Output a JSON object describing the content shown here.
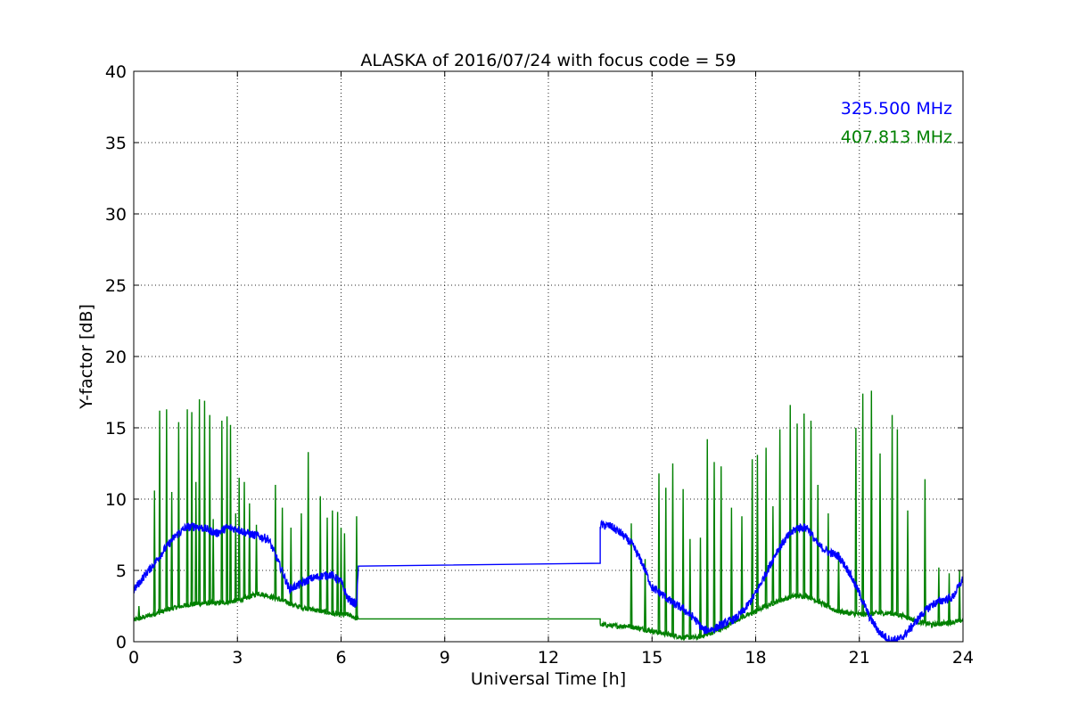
{
  "chart_data": {
    "type": "line",
    "title": "ALASKA of 2016/07/24 with focus code = 59",
    "xlabel": "Universal Time [h]",
    "ylabel": "Y-factor [dB]",
    "xlim": [
      0,
      24
    ],
    "ylim": [
      0,
      40
    ],
    "xticks": [
      0,
      3,
      6,
      9,
      12,
      15,
      18,
      21,
      24
    ],
    "yticks": [
      0,
      5,
      10,
      15,
      20,
      25,
      30,
      35,
      40
    ],
    "grid": true,
    "legend_position": "top-right",
    "series": [
      {
        "name": "325.500 MHz",
        "color": "#0000ff",
        "x": [
          0,
          0.3,
          0.6,
          0.9,
          1.2,
          1.5,
          1.8,
          2.1,
          2.4,
          2.7,
          3.0,
          3.3,
          3.6,
          3.9,
          4.2,
          4.5,
          4.8,
          5.1,
          5.4,
          5.7,
          6.0,
          6.2,
          6.45,
          6.5,
          13.5,
          13.5,
          13.8,
          14.1,
          14.4,
          14.7,
          15.0,
          15.3,
          15.6,
          15.9,
          16.2,
          16.5,
          16.8,
          17.1,
          17.4,
          17.7,
          18.0,
          18.3,
          18.6,
          18.9,
          19.2,
          19.5,
          19.8,
          20.1,
          20.4,
          20.7,
          21.0,
          21.3,
          21.6,
          21.9,
          22.2,
          22.5,
          22.8,
          23.1,
          23.4,
          23.7,
          24.0
        ],
        "values": [
          3.6,
          4.6,
          5.5,
          6.5,
          7.4,
          8.0,
          8.1,
          7.9,
          7.6,
          8.0,
          7.9,
          7.6,
          7.4,
          7.2,
          5.5,
          3.7,
          4.0,
          4.4,
          4.6,
          4.7,
          4.2,
          3.0,
          2.6,
          5.3,
          5.5,
          8.2,
          8.1,
          7.6,
          6.9,
          5.6,
          3.8,
          3.3,
          2.7,
          2.3,
          1.7,
          0.8,
          0.9,
          1.3,
          1.6,
          2.3,
          3.4,
          4.8,
          6.3,
          7.3,
          8.0,
          8.0,
          6.8,
          6.3,
          6.0,
          4.9,
          3.4,
          1.7,
          0.6,
          0.1,
          0.2,
          1.0,
          1.9,
          2.6,
          2.9,
          3.1,
          4.4
        ]
      },
      {
        "name": "407.813 MHz",
        "color": "#008000",
        "x": [
          0,
          0.4,
          0.8,
          1.2,
          1.6,
          2.0,
          2.4,
          2.8,
          3.2,
          3.6,
          3.9,
          4.3,
          4.7,
          5.1,
          5.5,
          5.9,
          6.2,
          6.5,
          6.5,
          13.5,
          13.5,
          13.9,
          14.3,
          14.7,
          15.1,
          15.5,
          15.9,
          16.3,
          16.7,
          17.1,
          17.5,
          17.9,
          18.3,
          18.7,
          19.1,
          19.5,
          19.9,
          20.3,
          20.7,
          21.1,
          21.5,
          21.9,
          22.3,
          22.7,
          23.1,
          23.5,
          24.0
        ],
        "values": [
          1.5,
          1.8,
          2.1,
          2.4,
          2.6,
          2.7,
          2.7,
          2.8,
          3.0,
          3.4,
          3.2,
          2.9,
          2.5,
          2.3,
          2.1,
          1.9,
          1.9,
          1.6,
          1.6,
          1.6,
          1.2,
          1.1,
          1.1,
          0.9,
          0.7,
          0.5,
          0.3,
          0.3,
          0.6,
          1.0,
          1.6,
          2.0,
          2.5,
          2.9,
          3.2,
          3.2,
          2.7,
          2.2,
          2.0,
          1.9,
          2.0,
          2.0,
          1.8,
          1.4,
          1.2,
          1.3,
          1.5
        ]
      }
    ],
    "spikes_407": [
      {
        "x": 0.15,
        "y": 2.5
      },
      {
        "x": 0.6,
        "y": 10.6
      },
      {
        "x": 0.75,
        "y": 16.2
      },
      {
        "x": 0.95,
        "y": 16.3
      },
      {
        "x": 1.1,
        "y": 10.5
      },
      {
        "x": 1.3,
        "y": 15.4
      },
      {
        "x": 1.55,
        "y": 16.3
      },
      {
        "x": 1.68,
        "y": 16.1
      },
      {
        "x": 1.8,
        "y": 11.2
      },
      {
        "x": 1.9,
        "y": 17.0
      },
      {
        "x": 2.05,
        "y": 16.9
      },
      {
        "x": 2.2,
        "y": 15.9
      },
      {
        "x": 2.3,
        "y": 8.6
      },
      {
        "x": 2.55,
        "y": 15.5
      },
      {
        "x": 2.7,
        "y": 15.8
      },
      {
        "x": 2.8,
        "y": 15.2
      },
      {
        "x": 2.95,
        "y": 9.0
      },
      {
        "x": 3.05,
        "y": 11.5
      },
      {
        "x": 3.2,
        "y": 11.2
      },
      {
        "x": 3.35,
        "y": 9.7
      },
      {
        "x": 3.55,
        "y": 8.2
      },
      {
        "x": 4.1,
        "y": 11.0
      },
      {
        "x": 4.3,
        "y": 9.4
      },
      {
        "x": 4.55,
        "y": 8.0
      },
      {
        "x": 4.85,
        "y": 9.0
      },
      {
        "x": 5.05,
        "y": 13.3
      },
      {
        "x": 5.4,
        "y": 10.2
      },
      {
        "x": 5.6,
        "y": 8.7
      },
      {
        "x": 5.75,
        "y": 9.2
      },
      {
        "x": 5.9,
        "y": 9.1
      },
      {
        "x": 6.0,
        "y": 8.0
      },
      {
        "x": 6.1,
        "y": 7.6
      },
      {
        "x": 6.45,
        "y": 8.8
      },
      {
        "x": 14.4,
        "y": 8.3
      },
      {
        "x": 14.8,
        "y": 5.8
      },
      {
        "x": 15.2,
        "y": 11.8
      },
      {
        "x": 15.4,
        "y": 10.8
      },
      {
        "x": 15.6,
        "y": 12.5
      },
      {
        "x": 15.9,
        "y": 10.7
      },
      {
        "x": 16.1,
        "y": 7.2
      },
      {
        "x": 16.4,
        "y": 7.3
      },
      {
        "x": 16.6,
        "y": 14.2
      },
      {
        "x": 16.8,
        "y": 12.6
      },
      {
        "x": 17.0,
        "y": 12.3
      },
      {
        "x": 17.3,
        "y": 9.4
      },
      {
        "x": 17.6,
        "y": 8.8
      },
      {
        "x": 17.9,
        "y": 12.8
      },
      {
        "x": 18.05,
        "y": 13.1
      },
      {
        "x": 18.3,
        "y": 13.6
      },
      {
        "x": 18.5,
        "y": 9.5
      },
      {
        "x": 18.7,
        "y": 14.9
      },
      {
        "x": 19.0,
        "y": 16.6
      },
      {
        "x": 19.2,
        "y": 15.3
      },
      {
        "x": 19.4,
        "y": 16.0
      },
      {
        "x": 19.6,
        "y": 15.5
      },
      {
        "x": 19.8,
        "y": 11.0
      },
      {
        "x": 20.1,
        "y": 9.0
      },
      {
        "x": 20.4,
        "y": 6.3
      },
      {
        "x": 20.9,
        "y": 15.0
      },
      {
        "x": 21.1,
        "y": 17.4
      },
      {
        "x": 21.35,
        "y": 17.6
      },
      {
        "x": 21.6,
        "y": 13.2
      },
      {
        "x": 21.95,
        "y": 15.9
      },
      {
        "x": 22.1,
        "y": 14.9
      },
      {
        "x": 22.4,
        "y": 9.2
      },
      {
        "x": 22.9,
        "y": 11.4
      },
      {
        "x": 23.3,
        "y": 5.2
      },
      {
        "x": 23.6,
        "y": 4.8
      },
      {
        "x": 23.9,
        "y": 5.0
      }
    ]
  }
}
